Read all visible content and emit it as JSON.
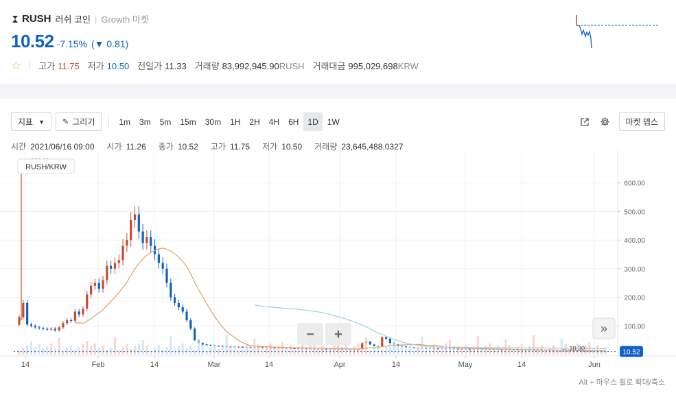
{
  "header": {
    "symbol": "RUSH",
    "korean_name": "러쉬 코인",
    "market": "Growth 마켓",
    "price": "10.52",
    "change_pct": "-7.15%",
    "change_open": "(",
    "change_arrow": "▼",
    "change_abs": "0.81)",
    "stats": {
      "high_label": "고가",
      "high": "11.75",
      "low_label": "저가",
      "low": "10.50",
      "prev_label": "전일가",
      "prev": "11.33",
      "volume_label": "거래량",
      "volume": "83,992,945.90",
      "volume_unit": "RUSH",
      "amount_label": "거래대금",
      "amount": "995,029,698",
      "amount_unit": "KRW"
    }
  },
  "toolbar": {
    "indicator_label": "지표",
    "draw_label": "그리기",
    "timeframes": [
      "1m",
      "3m",
      "5m",
      "15m",
      "30m",
      "1H",
      "2H",
      "4H",
      "6H",
      "1D",
      "1W"
    ],
    "active_timeframe": "1D",
    "market_depth_label": "마켓 뎁스"
  },
  "info": {
    "time_label": "시간",
    "time": "2021/06/16 09:00",
    "open_label": "시가",
    "open": "11.26",
    "close_label": "종가",
    "close": "10.52",
    "high_label": "고가",
    "high": "11.75",
    "low_label": "저가",
    "low": "10.50",
    "volume_label": "거래량",
    "volume": "23,645,488.0327"
  },
  "chart_labels": {
    "pair": "RUSH/KRW",
    "max_marker": "← 680.00",
    "min_marker": "← 10.30",
    "last_price": "10.52",
    "hint": "Alt + 마우스 휠로 확대/축소",
    "zoom_out": "−",
    "zoom_in": "+",
    "scroll_right": "»"
  },
  "colors": {
    "up": "#c84a31",
    "down": "#1261c4",
    "ma_short": "#e0a060",
    "ma_long": "#9fd0de"
  },
  "chart_data": {
    "type": "candlestick",
    "ylim": [
      0,
      700
    ],
    "y_ticks": [
      "100.00",
      "200.00",
      "300.00",
      "400.00",
      "500.00",
      "600.00"
    ],
    "x_ticks": [
      "14",
      "Feb",
      "14",
      "Mar",
      "14",
      "Apr",
      "14",
      "May",
      "14",
      "Jun"
    ],
    "closes": [
      130,
      180,
      105,
      100,
      95,
      92,
      90,
      88,
      90,
      85,
      95,
      110,
      120,
      118,
      150,
      140,
      160,
      210,
      240,
      250,
      230,
      260,
      310,
      300,
      320,
      330,
      380,
      400,
      470,
      490,
      430,
      390,
      410,
      380,
      350,
      320,
      300,
      250,
      200,
      180,
      165,
      150,
      120,
      90,
      50,
      40,
      35,
      33,
      32,
      30,
      30,
      29,
      28,
      28,
      27,
      27,
      26,
      26,
      25,
      25,
      25,
      24,
      24,
      24,
      23,
      23,
      23,
      22,
      22,
      22,
      21,
      21,
      21,
      20,
      20,
      20,
      20,
      19,
      19,
      19,
      19,
      19,
      18,
      18,
      18,
      18,
      40,
      45,
      35,
      30,
      28,
      60,
      55,
      40,
      35,
      30,
      28,
      26,
      25,
      24,
      24,
      23,
      23,
      22,
      22,
      22,
      21,
      21,
      21,
      20,
      20,
      20,
      19,
      19,
      19,
      19,
      18,
      18,
      18,
      18,
      17,
      17,
      17,
      17,
      16,
      16,
      16,
      16,
      15,
      15,
      15,
      15,
      14,
      14,
      14,
      14,
      13,
      13,
      13,
      13,
      12,
      12,
      12,
      12,
      11,
      11,
      11,
      10.52
    ]
  }
}
